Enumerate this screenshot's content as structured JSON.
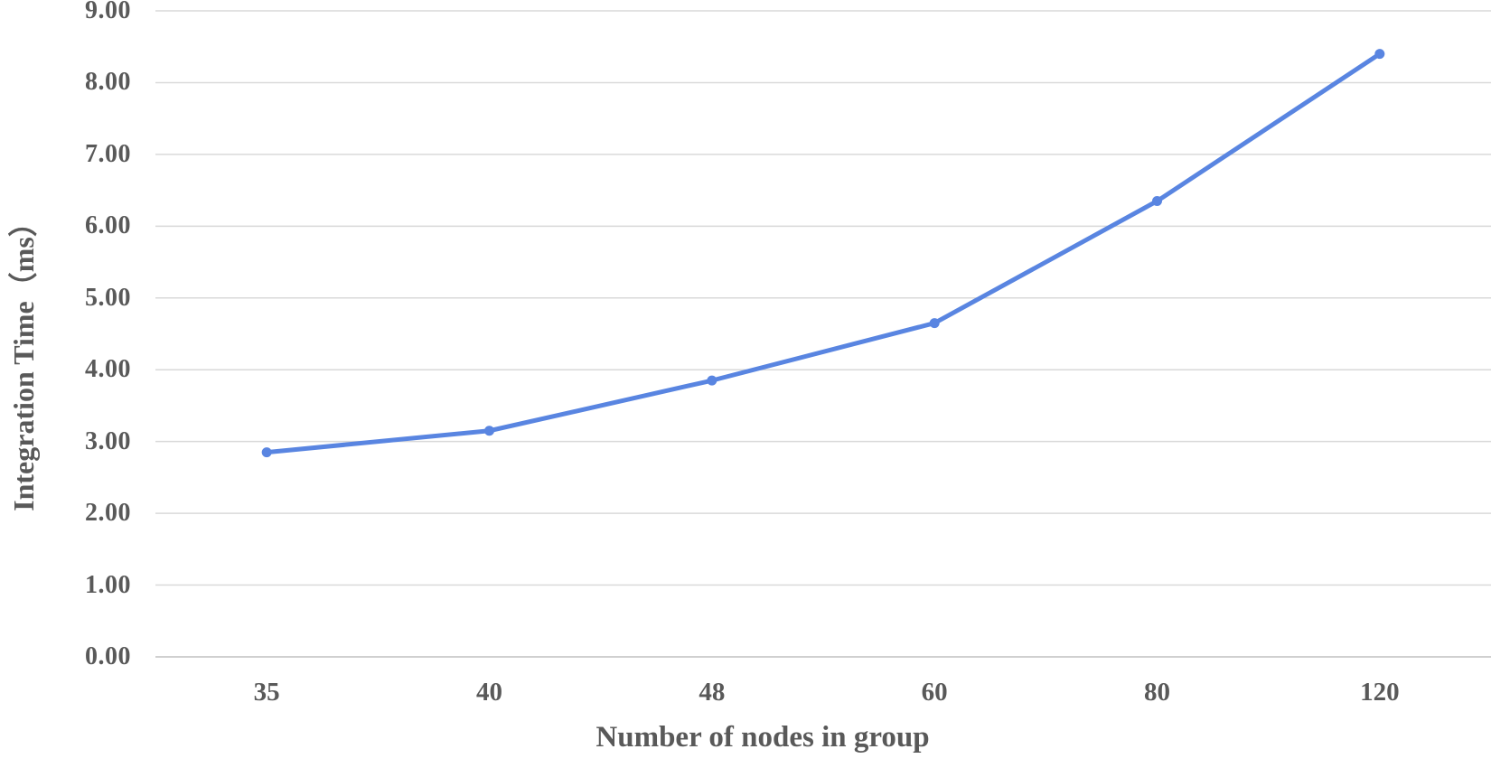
{
  "chart_data": {
    "type": "line",
    "title": "",
    "xlabel": "Number of nodes in group",
    "ylabel": "Integration Time（ms）",
    "categories": [
      "35",
      "40",
      "48",
      "60",
      "80",
      "120"
    ],
    "values": [
      2.85,
      3.15,
      3.85,
      4.65,
      6.35,
      8.4
    ],
    "ylim": [
      0,
      9
    ],
    "y_tick_step": 1,
    "y_tick_labels": [
      "0.00",
      "1.00",
      "2.00",
      "3.00",
      "4.00",
      "5.00",
      "6.00",
      "7.00",
      "8.00",
      "9.00"
    ],
    "grid": true,
    "legend": "none",
    "marker": "circle",
    "colors": {
      "line": "#5985E1",
      "marker": "#5985E1",
      "gridline": "#D9D9D9",
      "axis_line": "#C0C0C0",
      "label_text": "#595959",
      "background": "#FFFFFF"
    }
  }
}
